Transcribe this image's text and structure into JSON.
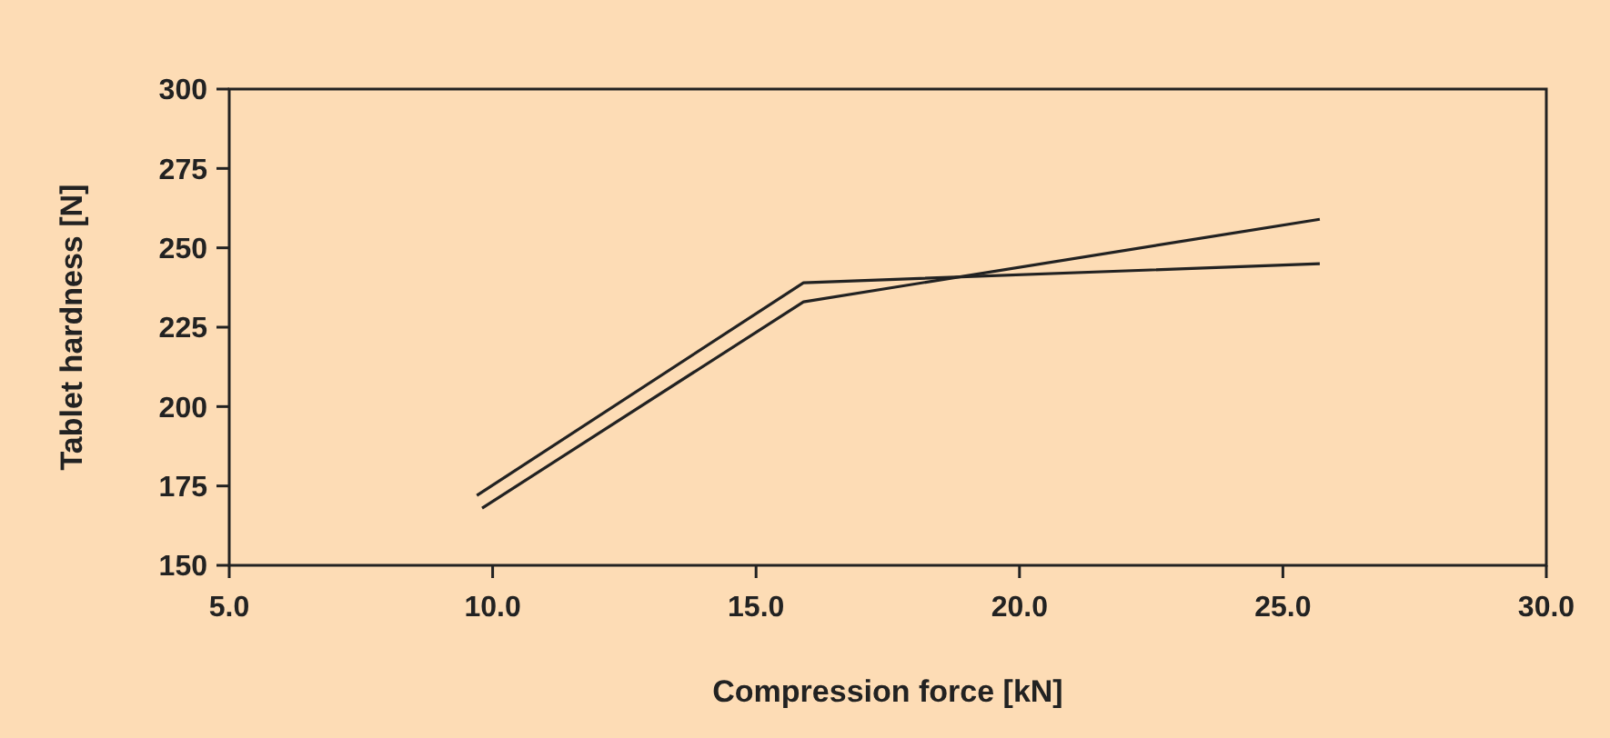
{
  "chart_data": {
    "type": "line",
    "xlabel": "Compression force [kN]",
    "ylabel": "Tablet hardness [N]",
    "xlim": [
      5,
      30
    ],
    "xticks": [
      {
        "value": 5,
        "label": "5.0"
      },
      {
        "value": 10,
        "label": "10.0"
      },
      {
        "value": 15,
        "label": "15.0"
      },
      {
        "value": 20,
        "label": "20.0"
      },
      {
        "value": 25,
        "label": "25.0"
      },
      {
        "value": 30,
        "label": "30.0"
      }
    ],
    "ylim": [
      150,
      300
    ],
    "yticks": [
      150,
      175,
      200,
      225,
      250,
      275,
      300
    ],
    "grid": false,
    "marker": "none",
    "line_style": "solid",
    "series": [
      {
        "color": "#222222",
        "x": [
          9.7,
          15.9,
          25.7
        ],
        "values": [
          172,
          239,
          245
        ]
      },
      {
        "color": "#222222",
        "x": [
          9.8,
          15.9,
          25.7
        ],
        "values": [
          168,
          233,
          259
        ]
      }
    ]
  }
}
